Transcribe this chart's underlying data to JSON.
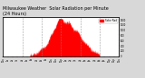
{
  "title": "Milwaukee Weather  Solar Radiation per Minute",
  "subtitle": "(24 Hours)",
  "title_fontsize": 3.5,
  "background_color": "#d8d8d8",
  "plot_bg_color": "#ffffff",
  "line_color": "#ff0000",
  "fill_color": "#ff0000",
  "grid_color": "#888888",
  "ylim": [
    0,
    1500
  ],
  "num_points": 1440,
  "peak_hour": 12.5,
  "peak_value": 1380,
  "legend_label": "Solar Rad",
  "legend_color": "#ff0000",
  "figsize": [
    1.6,
    0.87
  ],
  "dpi": 100
}
